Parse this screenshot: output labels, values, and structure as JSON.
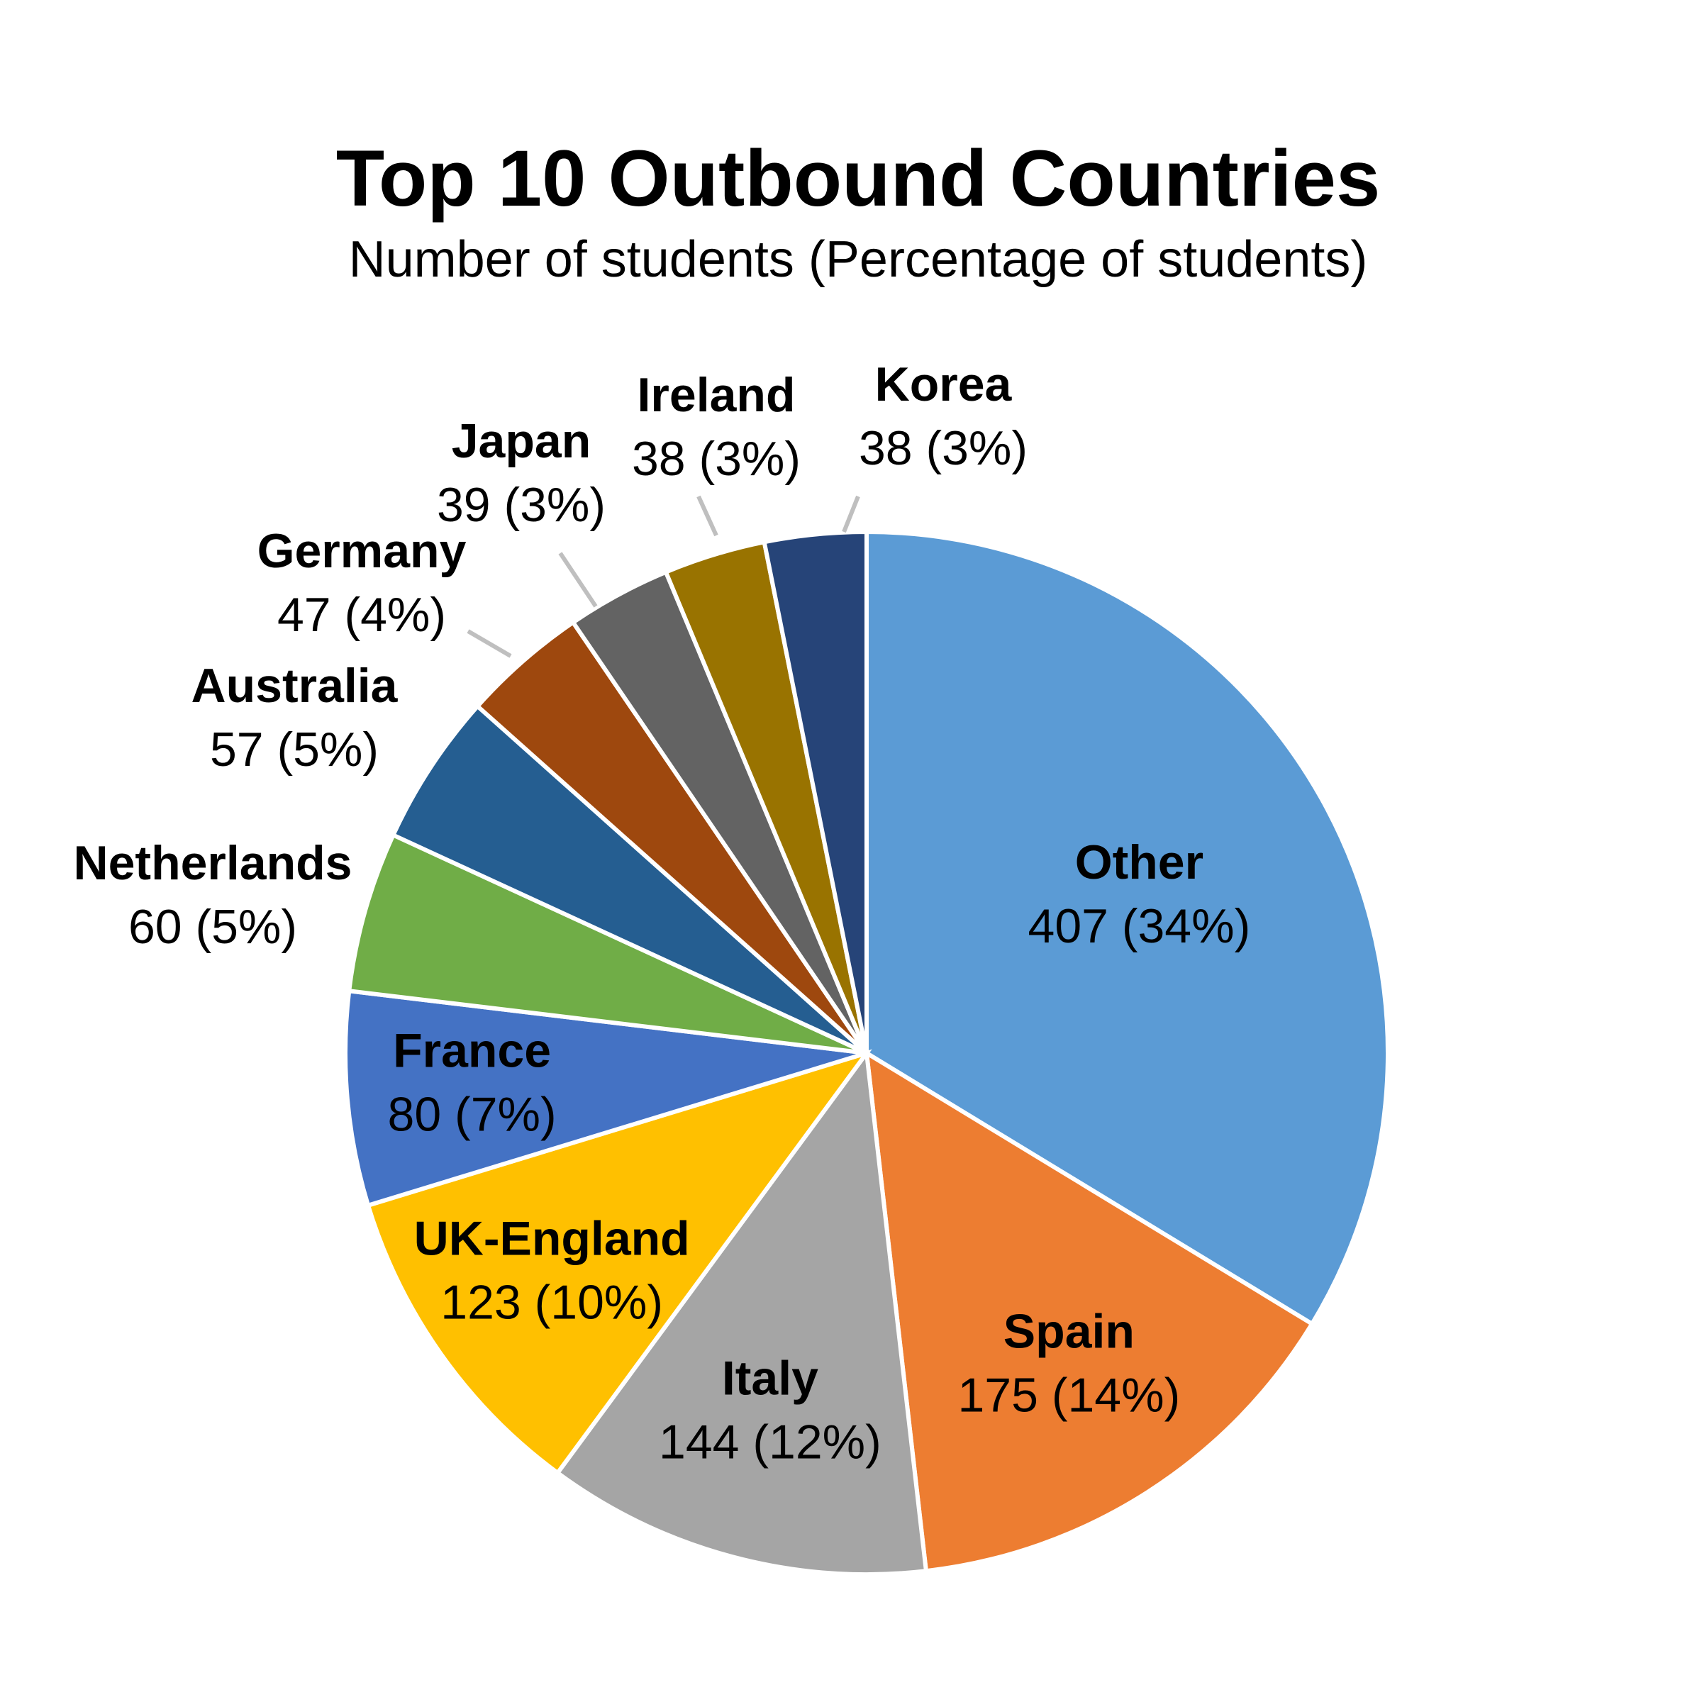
{
  "chart_data": {
    "type": "pie",
    "title": "Top 10 Outbound Countries",
    "subtitle": "Number of students (Percentage of students)",
    "start_angle_deg": 0,
    "direction": "clockwise",
    "slices": [
      {
        "label": "Other",
        "value": 407,
        "percent_label": "407 (34%)",
        "color": "#5B9BD5"
      },
      {
        "label": "Spain",
        "value": 175,
        "percent_label": "175 (14%)",
        "color": "#ED7D31"
      },
      {
        "label": "Italy",
        "value": 144,
        "percent_label": "144 (12%)",
        "color": "#A5A5A5"
      },
      {
        "label": "UK-England",
        "value": 123,
        "percent_label": "123 (10%)",
        "color": "#FFC000"
      },
      {
        "label": "France",
        "value": 80,
        "percent_label": "80 (7%)",
        "color": "#4472C4"
      },
      {
        "label": "Netherlands",
        "value": 60,
        "percent_label": "60 (5%)",
        "color": "#70AD47"
      },
      {
        "label": "Australia",
        "value": 57,
        "percent_label": "57 (5%)",
        "color": "#255E91"
      },
      {
        "label": "Germany",
        "value": 47,
        "percent_label": "47 (4%)",
        "color": "#9E480E"
      },
      {
        "label": "Japan",
        "value": 39,
        "percent_label": "39 (3%)",
        "color": "#636363"
      },
      {
        "label": "Ireland",
        "value": 38,
        "percent_label": "38 (3%)",
        "color": "#997300"
      },
      {
        "label": "Korea",
        "value": 38,
        "percent_label": "38 (3%)",
        "color": "#264478"
      }
    ]
  }
}
